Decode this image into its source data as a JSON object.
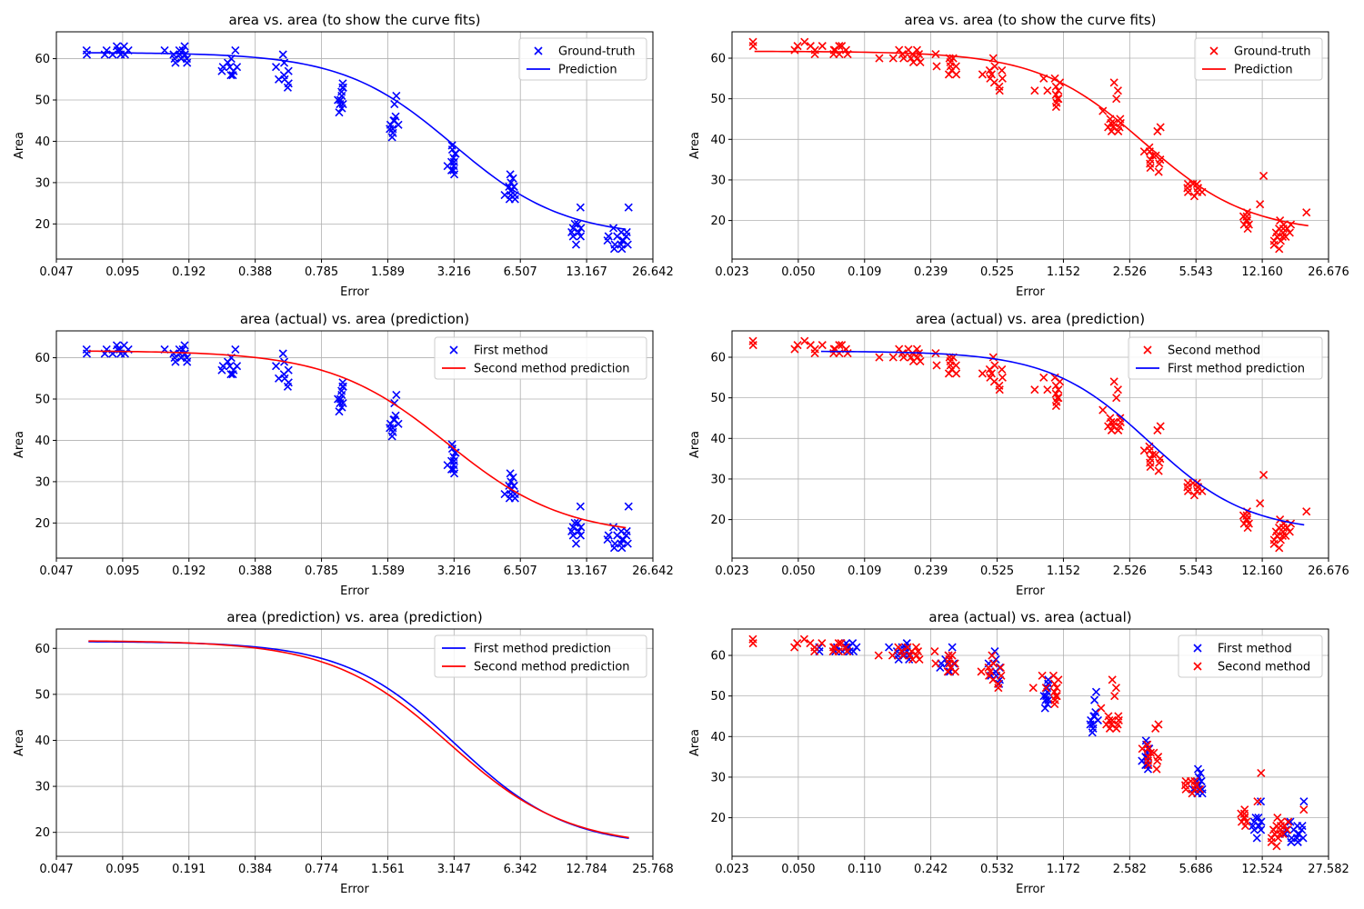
{
  "figure": {
    "colors": {
      "blue": "#0000ff",
      "red": "#ff0000",
      "grid": "#b0b0b0",
      "axis": "#000000"
    }
  },
  "chart_data": [
    {
      "id": "p1",
      "type": "scatter",
      "title": "area vs. area (to show the curve fits)",
      "xlabel": "Error",
      "ylabel": "Area",
      "x_scale": "log",
      "xlim": [
        0.047,
        26.642
      ],
      "ylim": [
        11.5,
        66.5
      ],
      "xticks": [
        "0.047",
        "0.095",
        "0.192",
        "0.388",
        "0.785",
        "1.589",
        "3.216",
        "6.507",
        "13.167",
        "26.642"
      ],
      "yticks": [
        20,
        30,
        40,
        50,
        60
      ],
      "grid": true,
      "legend_position": "top-right",
      "series": [
        {
          "name": "Ground-truth",
          "kind": "scatter",
          "color": "#0000ff",
          "seed": 11,
          "clusters": [
            {
              "x": 0.066,
              "ys": [
                62,
                61
              ]
            },
            {
              "x": 0.081,
              "ys": [
                62,
                61
              ]
            },
            {
              "x": 0.088,
              "ys": [
                63,
                62,
                61
              ]
            },
            {
              "x": 0.095,
              "ys": [
                63,
                62,
                61
              ]
            },
            {
              "x": 0.099,
              "ys": [
                62,
                61
              ]
            },
            {
              "x": 0.15,
              "ys": [
                62
              ]
            },
            {
              "x": 0.165,
              "ys": [
                61,
                60,
                59
              ]
            },
            {
              "x": 0.175,
              "ys": [
                62,
                61,
                60
              ]
            },
            {
              "x": 0.185,
              "ys": [
                63,
                62,
                60,
                59
              ]
            },
            {
              "x": 0.19,
              "ys": [
                61
              ]
            },
            {
              "x": 0.28,
              "ys": [
                58,
                57
              ]
            },
            {
              "x": 0.3,
              "ys": [
                60,
                59,
                58,
                57,
                56
              ]
            },
            {
              "x": 0.31,
              "ys": [
                62,
                58,
                56
              ]
            },
            {
              "x": 0.49,
              "ys": [
                58,
                55
              ]
            },
            {
              "x": 0.54,
              "ys": [
                61,
                59,
                57,
                56,
                55,
                54,
                53
              ]
            },
            {
              "x": 0.96,
              "ys": [
                53,
                51,
                50,
                49
              ]
            },
            {
              "x": 0.98,
              "ys": [
                54,
                53,
                52,
                50,
                49,
                48,
                47
              ]
            },
            {
              "x": 1.68,
              "ys": [
                45,
                44,
                43
              ]
            },
            {
              "x": 1.72,
              "ys": [
                51,
                49,
                46,
                45,
                44,
                43,
                42,
                41
              ]
            },
            {
              "x": 3.0,
              "ys": [
                34
              ]
            },
            {
              "x": 3.2,
              "ys": [
                39,
                38,
                37,
                36,
                35,
                34,
                33,
                32
              ]
            },
            {
              "x": 3.3,
              "ys": [
                37,
                35,
                33
              ]
            },
            {
              "x": 5.7,
              "ys": [
                29,
                28,
                27
              ]
            },
            {
              "x": 5.95,
              "ys": [
                32,
                30,
                29,
                28,
                27,
                26
              ]
            },
            {
              "x": 6.0,
              "ys": [
                31,
                29,
                27,
                26
              ]
            },
            {
              "x": 11.5,
              "ys": [
                20,
                19,
                18,
                17
              ]
            },
            {
              "x": 12.0,
              "ys": [
                24,
                20,
                19,
                18,
                17,
                15
              ]
            },
            {
              "x": 16.5,
              "ys": [
                17,
                16
              ]
            },
            {
              "x": 18.0,
              "ys": [
                19,
                17,
                15,
                14
              ]
            },
            {
              "x": 19.0,
              "ys": [
                18,
                16,
                15,
                14
              ]
            },
            {
              "x": 20.0,
              "ys": [
                24,
                18,
                17,
                16,
                15
              ]
            }
          ]
        },
        {
          "name": "Prediction",
          "kind": "line",
          "color": "#0000ff",
          "curve": {
            "top": 61.5,
            "bottom": 16.8,
            "center": 3.2,
            "k": 1.7,
            "xstart": 0.066,
            "xend": 20.0
          }
        }
      ]
    },
    {
      "id": "p2",
      "type": "scatter",
      "title": "area vs. area (to show the curve fits)",
      "xlabel": "Error",
      "ylabel": "Area",
      "x_scale": "log",
      "xlim": [
        0.023,
        26.676
      ],
      "ylim": [
        10.5,
        66.5
      ],
      "xticks": [
        "0.023",
        "0.050",
        "0.109",
        "0.239",
        "0.525",
        "1.152",
        "2.526",
        "5.543",
        "12.160",
        "26.676"
      ],
      "yticks": [
        20,
        30,
        40,
        50,
        60
      ],
      "grid": true,
      "legend_position": "top-right",
      "series": [
        {
          "name": "Ground-truth",
          "kind": "scatter",
          "color": "#ff0000",
          "seed": 22,
          "clusters": [
            {
              "x": 0.03,
              "ys": [
                64,
                63
              ]
            },
            {
              "x": 0.047,
              "ys": [
                62
              ]
            },
            {
              "x": 0.05,
              "ys": [
                63
              ]
            },
            {
              "x": 0.056,
              "ys": [
                64
              ]
            },
            {
              "x": 0.06,
              "ys": [
                63,
                62,
                61
              ]
            },
            {
              "x": 0.066,
              "ys": [
                63
              ]
            },
            {
              "x": 0.075,
              "ys": [
                62,
                61
              ]
            },
            {
              "x": 0.08,
              "ys": [
                63,
                62,
                61
              ]
            },
            {
              "x": 0.087,
              "ys": [
                63,
                62
              ]
            },
            {
              "x": 0.093,
              "ys": [
                61
              ]
            },
            {
              "x": 0.13,
              "ys": [
                60
              ]
            },
            {
              "x": 0.15,
              "ys": [
                60
              ]
            },
            {
              "x": 0.17,
              "ys": [
                62,
                61,
                60
              ]
            },
            {
              "x": 0.19,
              "ys": [
                62,
                61,
                60,
                59
              ]
            },
            {
              "x": 0.21,
              "ys": [
                62,
                61,
                60,
                59
              ]
            },
            {
              "x": 0.26,
              "ys": [
                61,
                58
              ]
            },
            {
              "x": 0.3,
              "ys": [
                60,
                59,
                58,
                57,
                56
              ]
            },
            {
              "x": 0.32,
              "ys": [
                60,
                58,
                56
              ]
            },
            {
              "x": 0.45,
              "ys": [
                56
              ]
            },
            {
              "x": 0.5,
              "ys": [
                60,
                58,
                57,
                56,
                55,
                54
              ]
            },
            {
              "x": 0.55,
              "ys": [
                57,
                55,
                53,
                52
              ]
            },
            {
              "x": 0.85,
              "ys": [
                52
              ]
            },
            {
              "x": 0.95,
              "ys": [
                55,
                52
              ]
            },
            {
              "x": 1.05,
              "ys": [
                55,
                53,
                51,
                50,
                49,
                48
              ]
            },
            {
              "x": 1.12,
              "ys": [
                54,
                52,
                50
              ]
            },
            {
              "x": 1.8,
              "ys": [
                47
              ]
            },
            {
              "x": 2.0,
              "ys": [
                45,
                44,
                43,
                42
              ]
            },
            {
              "x": 2.15,
              "ys": [
                54,
                52,
                50,
                44,
                43,
                42
              ]
            },
            {
              "x": 2.3,
              "ys": [
                45,
                44,
                43
              ]
            },
            {
              "x": 3.1,
              "ys": [
                37
              ]
            },
            {
              "x": 3.3,
              "ys": [
                38,
                37,
                36,
                35,
                34,
                33
              ]
            },
            {
              "x": 3.5,
              "ys": [
                42,
                36,
                34,
                32
              ]
            },
            {
              "x": 3.65,
              "ys": [
                43,
                35
              ]
            },
            {
              "x": 4.9,
              "ys": [
                29,
                28,
                27
              ]
            },
            {
              "x": 5.5,
              "ys": [
                29,
                28,
                27,
                26
              ]
            },
            {
              "x": 5.8,
              "ys": [
                29,
                28,
                27
              ]
            },
            {
              "x": 10.0,
              "ys": [
                22,
                21,
                20,
                19,
                18
              ]
            },
            {
              "x": 10.5,
              "ys": [
                21,
                20,
                19
              ]
            },
            {
              "x": 12.0,
              "ys": [
                31,
                24
              ]
            },
            {
              "x": 14.5,
              "ys": [
                18,
                17,
                16,
                15,
                14,
                13
              ]
            },
            {
              "x": 15.5,
              "ys": [
                20,
                19,
                18,
                17,
                16,
                15
              ]
            },
            {
              "x": 16.5,
              "ys": [
                19,
                18,
                17,
                16
              ]
            },
            {
              "x": 21.0,
              "ys": [
                22
              ]
            }
          ]
        },
        {
          "name": "Prediction",
          "kind": "line",
          "color": "#ff0000",
          "curve": {
            "top": 61.7,
            "bottom": 16.8,
            "center": 3.0,
            "k": 1.6,
            "xstart": 0.03,
            "xend": 21.0
          }
        }
      ]
    },
    {
      "id": "p3",
      "type": "scatter",
      "title": "area (actual) vs. area (prediction)",
      "xlabel": "Error",
      "ylabel": "Area",
      "x_scale": "log",
      "xlim": [
        0.047,
        26.642
      ],
      "ylim": [
        11.5,
        66.5
      ],
      "xticks": [
        "0.047",
        "0.095",
        "0.192",
        "0.388",
        "0.785",
        "1.589",
        "3.216",
        "6.507",
        "13.167",
        "26.642"
      ],
      "yticks": [
        20,
        30,
        40,
        50,
        60
      ],
      "grid": true,
      "legend_position": "top-right",
      "series": [
        {
          "name": "First method",
          "kind": "scatter",
          "color": "#0000ff",
          "seed": 11,
          "copy_clusters_from": "p1"
        },
        {
          "name": "Second method prediction",
          "kind": "line",
          "color": "#ff0000",
          "curve": {
            "top": 61.7,
            "bottom": 16.8,
            "center": 3.0,
            "k": 1.6,
            "xstart": 0.066,
            "xend": 20.0
          }
        }
      ]
    },
    {
      "id": "p4",
      "type": "scatter",
      "title": "area (actual) vs. area (prediction)",
      "xlabel": "Error",
      "ylabel": "Area",
      "x_scale": "log",
      "xlim": [
        0.023,
        26.676
      ],
      "ylim": [
        10.5,
        66.5
      ],
      "xticks": [
        "0.023",
        "0.050",
        "0.109",
        "0.239",
        "0.525",
        "1.152",
        "2.526",
        "5.543",
        "12.160",
        "26.676"
      ],
      "yticks": [
        20,
        30,
        40,
        50,
        60
      ],
      "grid": true,
      "legend_position": "top-right",
      "series": [
        {
          "name": "Second method",
          "kind": "scatter",
          "color": "#ff0000",
          "seed": 22,
          "copy_clusters_from": "p2"
        },
        {
          "name": "First method prediction",
          "kind": "line",
          "color": "#0000ff",
          "curve": {
            "top": 61.5,
            "bottom": 16.8,
            "center": 3.2,
            "k": 1.7,
            "xstart": 0.066,
            "xend": 20.0
          }
        }
      ]
    },
    {
      "id": "p5",
      "type": "line",
      "title": "area (prediction) vs. area (prediction)",
      "xlabel": "Error",
      "ylabel": "Area",
      "x_scale": "log",
      "xlim": [
        0.047,
        25.768
      ],
      "ylim": [
        14.8,
        64.2
      ],
      "xticks": [
        "0.047",
        "0.095",
        "0.191",
        "0.384",
        "0.774",
        "1.561",
        "3.147",
        "6.342",
        "12.784",
        "25.768"
      ],
      "yticks": [
        20,
        30,
        40,
        50,
        60
      ],
      "grid": true,
      "legend_position": "top-right",
      "series": [
        {
          "name": "First method prediction",
          "kind": "line",
          "color": "#0000ff",
          "curve": {
            "top": 61.5,
            "bottom": 16.8,
            "center": 3.2,
            "k": 1.7,
            "xstart": 0.066,
            "xend": 20.0
          }
        },
        {
          "name": "Second method prediction",
          "kind": "line",
          "color": "#ff0000",
          "curve": {
            "top": 61.7,
            "bottom": 16.8,
            "center": 3.0,
            "k": 1.6,
            "xstart": 0.066,
            "xend": 20.0
          }
        }
      ]
    },
    {
      "id": "p6",
      "type": "scatter",
      "title": "area (actual) vs. area (actual)",
      "xlabel": "Error",
      "ylabel": "Area",
      "x_scale": "log",
      "xlim": [
        0.023,
        27.582
      ],
      "ylim": [
        10.5,
        66.5
      ],
      "xticks": [
        "0.023",
        "0.050",
        "0.110",
        "0.242",
        "0.532",
        "1.172",
        "2.582",
        "5.686",
        "12.524",
        "27.582"
      ],
      "yticks": [
        20,
        30,
        40,
        50,
        60
      ],
      "grid": true,
      "legend_position": "top-right",
      "series": [
        {
          "name": "First method",
          "kind": "scatter",
          "color": "#0000ff",
          "seed": 11,
          "copy_clusters_from": "p1"
        },
        {
          "name": "Second method",
          "kind": "scatter",
          "color": "#ff0000",
          "seed": 22,
          "copy_clusters_from": "p2"
        }
      ]
    }
  ]
}
